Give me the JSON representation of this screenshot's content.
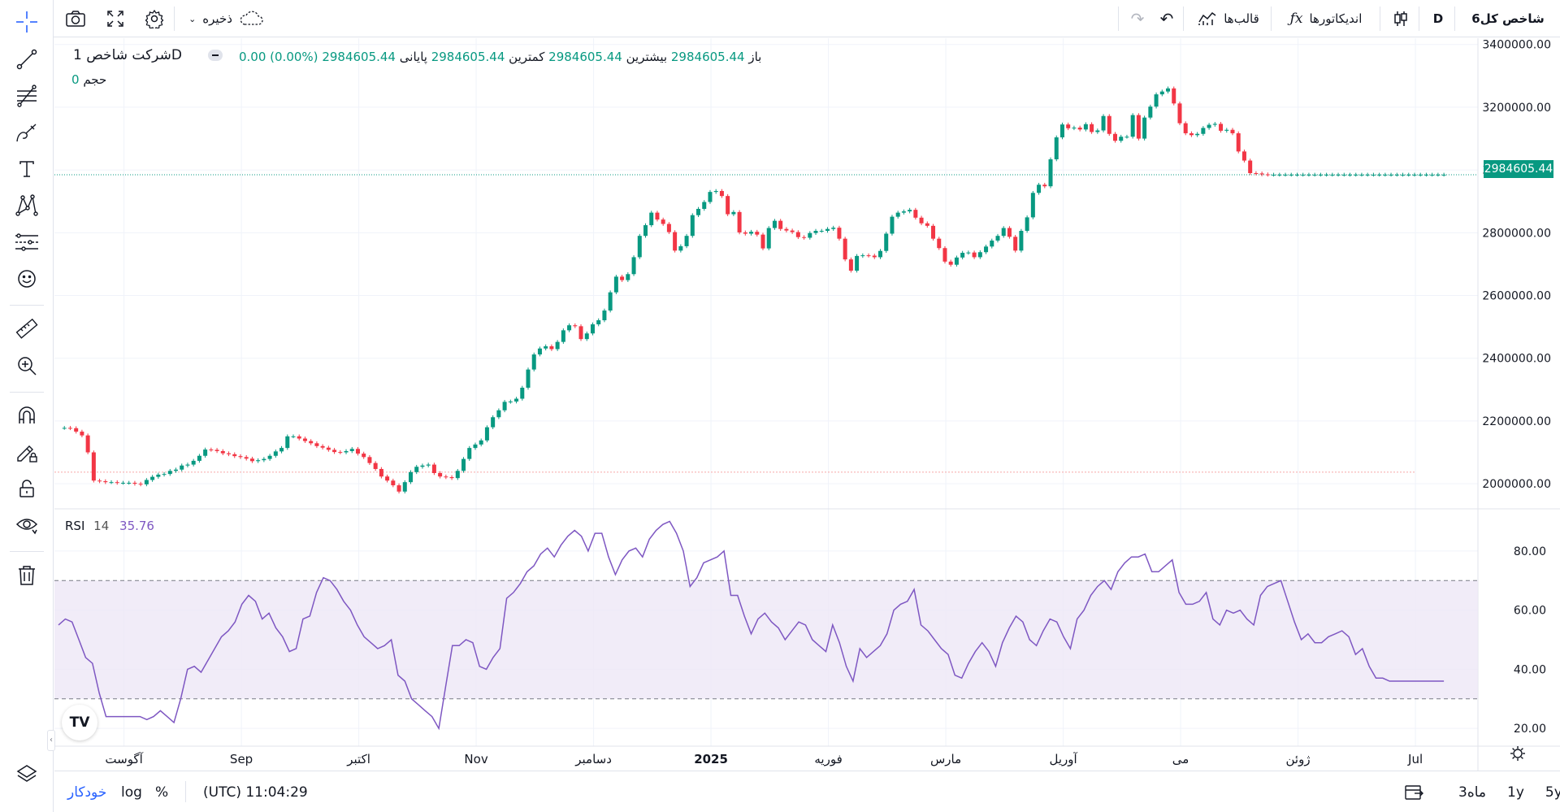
{
  "header": {
    "symbol": "شاخص کل6",
    "interval": "D",
    "indicators_label": "اندیکاتورها",
    "templates_label": "قالب‌ها",
    "save_label": "ذخیره"
  },
  "legend": {
    "title": "شرکت شاخص",
    "interval": "1D",
    "open_label": "باز",
    "open": "2984605.44",
    "high_label": "بیشترین",
    "high": "2984605.44",
    "low_label": "کمترین",
    "low": "2984605.44",
    "close_label": "پایانی",
    "close": "2984605.44",
    "change": "0.00 (0.00%)",
    "volume_label": "حجم",
    "volume": "0"
  },
  "rsi_legend": {
    "name": "RSI",
    "length": "14",
    "value": "35.76"
  },
  "price_tag": "2984605.44",
  "bottom": {
    "auto_label": "خودکار",
    "log_label": "log",
    "pct_label": "%",
    "clock": "(UTC) 11:04:29",
    "ranges": [
      "5y",
      "1y",
      "3ماه"
    ]
  },
  "colors": {
    "up": "#089981",
    "down": "#f23645",
    "rsi": "#7e57c2",
    "band": "#ede7f6"
  },
  "icons": [
    "crosshair-icon",
    "trendline-icon",
    "fib-icon",
    "brush-icon",
    "text-icon",
    "pattern-icon",
    "forecast-icon",
    "emoji-icon",
    "ruler-icon",
    "zoom-icon",
    "magnet-icon",
    "lock-draw-icon",
    "lock-icon",
    "eye-icon",
    "trash-icon",
    "layers-icon"
  ],
  "chart_data": [
    {
      "type": "candlestick",
      "ylim": [
        1920000,
        3420000
      ],
      "ylabels": [
        "3400000.00",
        "3200000.00",
        "3000000.00",
        "2800000.00",
        "2600000.00",
        "2400000.00",
        "2200000.00",
        "2000000.00"
      ],
      "yticks": [
        3400000,
        3200000,
        3000000,
        2800000,
        2600000,
        2400000,
        2200000,
        2000000
      ],
      "xlabels": [
        "آگوست",
        "Sep",
        "اکتبر",
        "Nov",
        "دسامبر",
        "2025",
        "فوریه",
        "مارس",
        "آوریل",
        "می",
        "ژوئن",
        "Jul"
      ],
      "xlabel_bold": [
        "2025"
      ],
      "x_count": 232,
      "xlabel_index": [
        7,
        27,
        47,
        67,
        87,
        107,
        127,
        147,
        167,
        187,
        207,
        227
      ],
      "closes": [
        2178000,
        2178000,
        2177000,
        2166000,
        2154000,
        2100000,
        2010000,
        2008000,
        2005000,
        2005000,
        2003000,
        2003000,
        2003000,
        2000000,
        1998000,
        2012000,
        2022000,
        2029000,
        2031000,
        2041000,
        2045000,
        2058000,
        2061000,
        2073000,
        2089000,
        2109000,
        2108000,
        2104000,
        2097000,
        2094000,
        2088000,
        2085000,
        2080000,
        2072000,
        2075000,
        2079000,
        2089000,
        2103000,
        2114000,
        2151000,
        2151000,
        2144000,
        2136000,
        2129000,
        2120000,
        2115000,
        2108000,
        2101000,
        2100000,
        2104000,
        2111000,
        2096000,
        2085000,
        2066000,
        2047000,
        2023000,
        2010000,
        1995000,
        1975000,
        2005000,
        2037000,
        2054000,
        2058000,
        2061000,
        2034000,
        2023000,
        2021000,
        2018000,
        2041000,
        2079000,
        2114000,
        2125000,
        2138000,
        2180000,
        2212000,
        2234000,
        2261000,
        2262000,
        2271000,
        2306000,
        2364000,
        2412000,
        2431000,
        2438000,
        2429000,
        2452000,
        2489000,
        2505000,
        2502000,
        2461000,
        2479000,
        2508000,
        2521000,
        2552000,
        2610000,
        2660000,
        2649000,
        2668000,
        2722000,
        2790000,
        2824000,
        2864000,
        2842000,
        2828000,
        2802000,
        2743000,
        2757000,
        2790000,
        2856000,
        2876000,
        2898000,
        2930000,
        2933000,
        2917000,
        2859000,
        2866000,
        2801000,
        2797000,
        2803000,
        2794000,
        2750000,
        2815000,
        2838000,
        2812000,
        2807000,
        2802000,
        2786000,
        2784000,
        2799000,
        2806000,
        2806000,
        2812000,
        2816000,
        2781000,
        2715000,
        2679000,
        2726000,
        2728000,
        2727000,
        2722000,
        2742000,
        2797000,
        2851000,
        2864000,
        2868000,
        2873000,
        2848000,
        2830000,
        2822000,
        2781000,
        2751000,
        2708000,
        2698000,
        2721000,
        2736000,
        2737000,
        2722000,
        2738000,
        2756000,
        2775000,
        2790000,
        2815000,
        2787000,
        2743000,
        2806000,
        2849000,
        2927000,
        2953000,
        2948000,
        3034000,
        3104000,
        3145000,
        3133000,
        3135000,
        3129000,
        3146000,
        3121000,
        3126000,
        3172000,
        3115000,
        3093000,
        3106000,
        3106000,
        3175000,
        3100000,
        3167000,
        3202000,
        3241000,
        3250000,
        3260000,
        3212000,
        3149000,
        3117000,
        3111000,
        3115000,
        3134000,
        3144000,
        3147000,
        3125000,
        3128000,
        3117000,
        3059000,
        3030000,
        2990000,
        2989000,
        2986000,
        2985000,
        2985000,
        2985000,
        2985000,
        2985000,
        2985000,
        2985000,
        2985000,
        2985000,
        2985000,
        2985000,
        2985000,
        2985000,
        2985000,
        2985000,
        2985000,
        2985000,
        2985000,
        2985000,
        2985000,
        2985000,
        2985000,
        2985000,
        2985000,
        2985000,
        2985000,
        2985000,
        2985000,
        2985000,
        2985000,
        2985000
      ],
      "last_price": 2984605.44,
      "reference_line": 2037000
    },
    {
      "type": "line",
      "name": "RSI",
      "ylim": [
        14,
        94
      ],
      "ylabels": [
        "80.00",
        "60.00",
        "40.00",
        "20.00"
      ],
      "yticks": [
        80,
        60,
        40,
        20
      ],
      "band": [
        30,
        70
      ],
      "values": [
        55,
        57,
        56,
        50,
        44,
        42,
        32,
        24,
        24,
        24,
        24,
        24,
        24,
        23,
        24,
        26,
        24,
        22,
        30,
        40,
        41,
        39,
        43,
        47,
        51,
        53,
        56,
        62,
        65,
        63,
        57,
        59,
        54,
        51,
        46,
        47,
        57,
        58,
        66,
        71,
        70,
        67,
        63,
        60,
        55,
        51,
        49,
        47,
        48,
        50,
        38,
        36,
        30,
        28,
        26,
        24,
        20,
        34,
        48,
        48,
        50,
        49,
        41,
        40,
        44,
        47,
        64,
        66,
        69,
        73,
        75,
        79,
        81,
        78,
        82,
        85,
        87,
        85,
        80,
        86,
        86,
        78,
        72,
        77,
        80,
        81,
        78,
        84,
        87,
        89,
        90,
        86,
        80,
        68,
        71,
        76,
        77,
        78,
        80,
        65,
        65,
        58,
        52,
        57,
        59,
        56,
        54,
        50,
        53,
        56,
        55,
        50,
        48,
        46,
        55,
        49,
        41,
        36,
        47,
        44,
        46,
        48,
        52,
        60,
        62,
        63,
        67,
        55,
        53,
        50,
        47,
        45,
        38,
        37,
        42,
        46,
        49,
        46,
        41,
        49,
        54,
        58,
        56,
        50,
        48,
        53,
        57,
        56,
        51,
        47,
        57,
        60,
        65,
        68,
        70,
        67,
        73,
        76,
        78,
        78,
        79,
        73,
        73,
        75,
        77,
        66,
        62,
        62,
        63,
        66,
        57,
        55,
        60,
        59,
        60,
        57,
        55,
        65,
        68,
        69,
        70,
        63,
        56,
        50,
        52,
        49,
        49,
        51,
        52,
        53,
        51,
        45,
        47,
        41,
        37,
        37,
        36,
        36,
        36,
        36,
        36,
        36,
        36,
        36,
        36
      ]
    }
  ]
}
